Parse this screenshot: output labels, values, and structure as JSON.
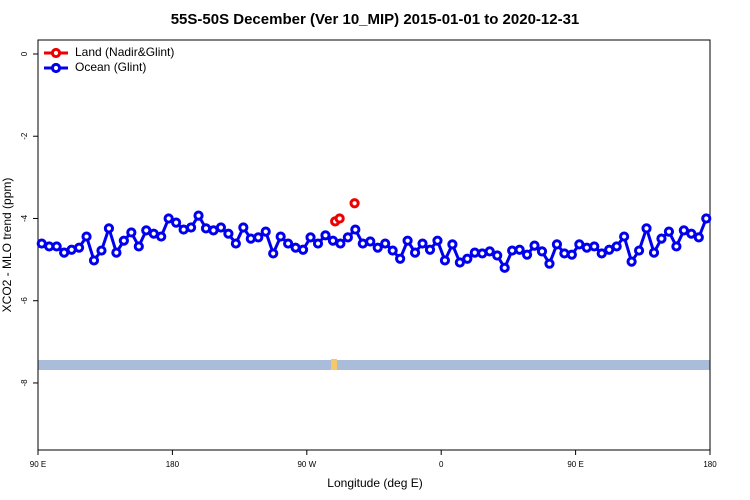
{
  "chart_data": {
    "type": "line",
    "title": "55S-50S December (Ver 10_MIP)   2015-01-01 to 2020-12-31",
    "xlabel": "Longitude (deg E)",
    "ylabel": "XCO2 - MLO trend (ppm)",
    "xlim": [
      90,
      540
    ],
    "ylim": [
      -9.63,
      0.34
    ],
    "xticks": [
      {
        "value": 90,
        "label": "90 E"
      },
      {
        "value": 180,
        "label": "180"
      },
      {
        "value": 270,
        "label": "90 W"
      },
      {
        "value": 360,
        "label": "0"
      },
      {
        "value": 450,
        "label": "90 E"
      },
      {
        "value": 540,
        "label": "180"
      }
    ],
    "yticks": [
      0,
      -2,
      -4,
      -6,
      -8
    ],
    "legend": "top-left",
    "series": [
      {
        "name": "Land (Nadir&Glint)",
        "color": "#ee0000",
        "x": [
          289,
          292,
          302
        ],
        "values": [
          -4.07,
          -4.0,
          -3.63
        ]
      },
      {
        "name": "Ocean (Glint)",
        "color": "#0000ee",
        "x": [
          92.5,
          97.5,
          102.5,
          107.5,
          112.5,
          117.5,
          122.5,
          127.5,
          132.5,
          137.5,
          142.5,
          147.5,
          152.5,
          157.5,
          162.5,
          167.5,
          172.5,
          177.5,
          182.5,
          187.5,
          192.5,
          197.5,
          202.5,
          207.5,
          212.5,
          217.5,
          222.5,
          227.5,
          232.5,
          237.5,
          242.5,
          247.5,
          252.5,
          257.5,
          262.5,
          267.5,
          272.5,
          277.5,
          282.5,
          287.5,
          292.5,
          297.5,
          302.5,
          307.5,
          312.5,
          317.5,
          322.5,
          327.5,
          332.5,
          337.5,
          342.5,
          347.5,
          352.5,
          357.5,
          362.5,
          367.5,
          372.5,
          377.5,
          382.5,
          387.5,
          392.5,
          397.5,
          402.5,
          407.5,
          412.5,
          417.5,
          422.5,
          427.5,
          432.5,
          437.5,
          442.5,
          447.5,
          452.5,
          457.5,
          462.5,
          467.5,
          472.5,
          477.5,
          482.5,
          487.5,
          492.5,
          497.5,
          502.5,
          507.5,
          512.5,
          517.5,
          522.5,
          527.5,
          532.5,
          537.5
        ],
        "values": [
          -4.61,
          -4.68,
          -4.68,
          -4.83,
          -4.76,
          -4.71,
          -4.44,
          -5.02,
          -4.78,
          -4.24,
          -4.83,
          -4.54,
          -4.34,
          -4.68,
          -4.29,
          -4.37,
          -4.44,
          -4.0,
          -4.1,
          -4.27,
          -4.22,
          -3.93,
          -4.24,
          -4.29,
          -4.22,
          -4.37,
          -4.61,
          -4.22,
          -4.49,
          -4.46,
          -4.32,
          -4.85,
          -4.44,
          -4.61,
          -4.71,
          -4.76,
          -4.46,
          -4.61,
          -4.41,
          -4.54,
          -4.61,
          -4.46,
          -4.27,
          -4.61,
          -4.56,
          -4.71,
          -4.61,
          -4.78,
          -4.98,
          -4.54,
          -4.83,
          -4.61,
          -4.76,
          -4.54,
          -5.02,
          -4.63,
          -5.07,
          -4.98,
          -4.83,
          -4.85,
          -4.8,
          -4.9,
          -5.2,
          -4.78,
          -4.76,
          -4.88,
          -4.66,
          -4.8,
          -5.1,
          -4.63,
          -4.85,
          -4.88,
          -4.63,
          -4.71,
          -4.68,
          -4.85,
          -4.76,
          -4.68,
          -4.44,
          -5.05,
          -4.78,
          -4.24,
          -4.83,
          -4.49,
          -4.32,
          -4.68,
          -4.29,
          -4.37,
          -4.46,
          -4.0
        ]
      }
    ]
  }
}
